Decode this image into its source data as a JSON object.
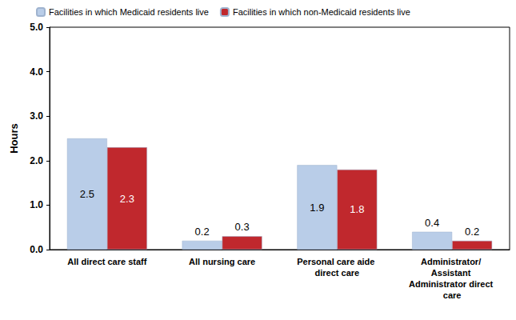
{
  "chart_data": {
    "type": "bar",
    "y_label": "Hours",
    "categories": [
      "All direct care staff",
      "All nursing care",
      "Personal care aide direct care",
      "Administrator/ Assistant Administrator direct care"
    ],
    "series": [
      {
        "name": "Facilities in which Medicaid residents live",
        "color": "#b9cde8",
        "values": [
          2.5,
          0.2,
          1.9,
          0.4
        ]
      },
      {
        "name": "Facilities in which non-Medicaid residents live",
        "color": "#c0282d",
        "values": [
          2.3,
          0.3,
          1.8,
          0.2
        ]
      }
    ],
    "ylim": [
      0,
      5
    ],
    "yticks": [
      {
        "value": 0,
        "label": "0.0"
      },
      {
        "value": 1,
        "label": "1.0"
      },
      {
        "value": 2,
        "label": "2.0"
      },
      {
        "value": 3,
        "label": "3.0"
      },
      {
        "value": 4,
        "label": "4.0"
      },
      {
        "value": 5,
        "label": "5.0"
      }
    ],
    "grid": false,
    "legend": "top-left",
    "data_labels": true
  }
}
